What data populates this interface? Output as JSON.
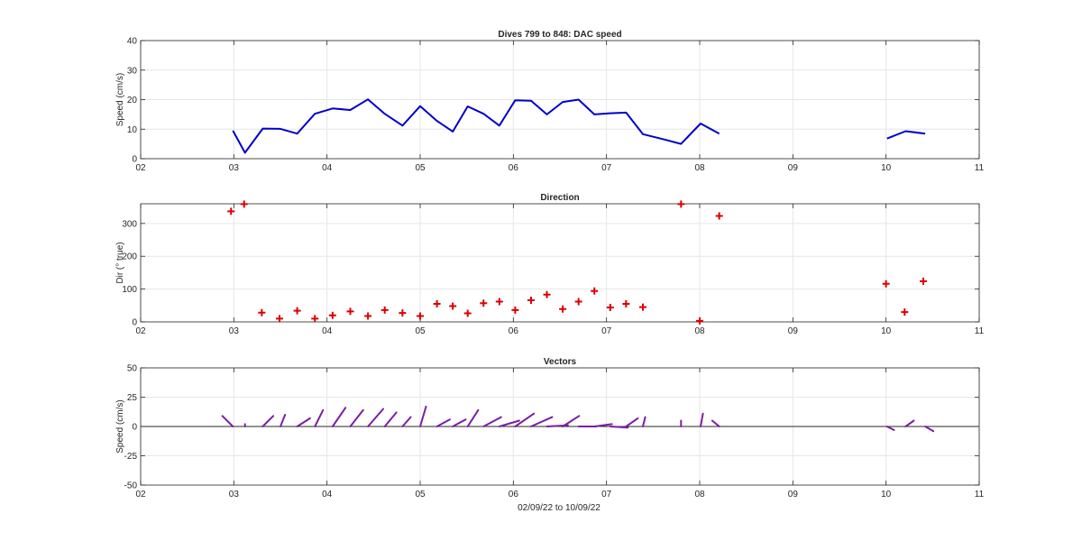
{
  "figure": {
    "xlabel": "02/09/22 to 10/09/22"
  },
  "chart_data": [
    {
      "type": "line",
      "title": "Dives 799 to 848: DAC speed",
      "ylabel": "Speed (cm/s)",
      "xlabel": "",
      "x_ticks": [
        "02",
        "03",
        "04",
        "05",
        "06",
        "07",
        "08",
        "09",
        "10",
        "11"
      ],
      "y_ticks": [
        0,
        10,
        20,
        30,
        40
      ],
      "xlim": [
        2,
        11
      ],
      "ylim": [
        0,
        40
      ],
      "grid": true,
      "color": "#0000cc",
      "series": [
        {
          "segments": [
            [
              [
                2.99,
                9.5
              ],
              [
                3.12,
                2.0
              ],
              [
                3.31,
                10.2
              ],
              [
                3.5,
                10.1
              ],
              [
                3.68,
                8.5
              ],
              [
                3.87,
                15.2
              ],
              [
                4.06,
                17.0
              ],
              [
                4.25,
                16.5
              ],
              [
                4.44,
                20.1
              ],
              [
                4.62,
                15.2
              ],
              [
                4.81,
                11.2
              ],
              [
                5.0,
                17.8
              ],
              [
                5.18,
                12.8
              ],
              [
                5.35,
                9.2
              ],
              [
                5.51,
                17.7
              ],
              [
                5.68,
                15.2
              ],
              [
                5.85,
                11.2
              ],
              [
                6.02,
                19.8
              ],
              [
                6.19,
                19.6
              ],
              [
                6.36,
                15.0
              ],
              [
                6.53,
                19.2
              ],
              [
                6.7,
                20.0
              ],
              [
                6.87,
                15.0
              ],
              [
                7.04,
                15.4
              ],
              [
                7.21,
                15.6
              ],
              [
                7.39,
                8.3
              ],
              [
                7.62,
                6.5
              ],
              [
                7.8,
                5.0
              ],
              [
                8.01,
                11.9
              ],
              [
                8.21,
                8.5
              ]
            ],
            [
              [
                10.01,
                6.8
              ],
              [
                10.21,
                9.3
              ],
              [
                10.42,
                8.5
              ]
            ]
          ]
        }
      ]
    },
    {
      "type": "scatter",
      "title": "Direction",
      "ylabel": "Dir (° true)",
      "xlabel": "",
      "x_ticks": [
        "02",
        "03",
        "04",
        "05",
        "06",
        "07",
        "08",
        "09",
        "10",
        "11"
      ],
      "y_ticks": [
        0,
        100,
        200,
        300
      ],
      "xlim": [
        2,
        11
      ],
      "ylim": [
        0,
        360
      ],
      "grid": true,
      "marker": "+",
      "color": "#dd0000",
      "points": [
        [
          2.97,
          337
        ],
        [
          3.11,
          359
        ],
        [
          3.3,
          28
        ],
        [
          3.49,
          10
        ],
        [
          3.68,
          34
        ],
        [
          3.87,
          10
        ],
        [
          4.06,
          20
        ],
        [
          4.25,
          32
        ],
        [
          4.44,
          18
        ],
        [
          4.62,
          36
        ],
        [
          4.81,
          27
        ],
        [
          5.0,
          18
        ],
        [
          5.18,
          55
        ],
        [
          5.35,
          48
        ],
        [
          5.51,
          26
        ],
        [
          5.68,
          57
        ],
        [
          5.85,
          62
        ],
        [
          6.02,
          36
        ],
        [
          6.19,
          66
        ],
        [
          6.36,
          83
        ],
        [
          6.53,
          39
        ],
        [
          6.7,
          62
        ],
        [
          6.87,
          94
        ],
        [
          7.04,
          44
        ],
        [
          7.21,
          55
        ],
        [
          7.39,
          45
        ],
        [
          7.8,
          359
        ],
        [
          8.0,
          3
        ],
        [
          8.21,
          323
        ],
        [
          10.0,
          116
        ],
        [
          10.2,
          30
        ],
        [
          10.4,
          124
        ]
      ]
    },
    {
      "type": "vector",
      "title": "Vectors",
      "ylabel": "Speed (cm/s)",
      "xlabel": "",
      "x_ticks": [
        "02",
        "03",
        "04",
        "05",
        "06",
        "07",
        "08",
        "09",
        "10",
        "11"
      ],
      "y_ticks": [
        "50",
        "25",
        "0",
        "-25",
        "-50"
      ],
      "xlim": [
        2,
        11
      ],
      "ylim": [
        -50,
        50
      ],
      "grid": true,
      "color": "#7a1fa2",
      "vectors": [
        [
          2.99,
          -9,
          9
        ],
        [
          3.12,
          0,
          2
        ],
        [
          3.31,
          9,
          9
        ],
        [
          3.5,
          4,
          10
        ],
        [
          3.68,
          11,
          7
        ],
        [
          3.87,
          7,
          14
        ],
        [
          4.06,
          11,
          16
        ],
        [
          4.25,
          11,
          14
        ],
        [
          4.44,
          13,
          15
        ],
        [
          4.62,
          10,
          12
        ],
        [
          4.81,
          7,
          8
        ],
        [
          5.0,
          5,
          17
        ],
        [
          5.18,
          11,
          6
        ],
        [
          5.35,
          11,
          6
        ],
        [
          5.51,
          9,
          14
        ],
        [
          5.68,
          15,
          8
        ],
        [
          5.85,
          17,
          5
        ],
        [
          6.02,
          16,
          11
        ],
        [
          6.19,
          18,
          8
        ],
        [
          6.36,
          18,
          1
        ],
        [
          6.53,
          14,
          9
        ],
        [
          6.7,
          15,
          0
        ],
        [
          6.87,
          15,
          2
        ],
        [
          7.04,
          15,
          -1
        ],
        [
          7.21,
          10,
          7
        ],
        [
          7.39,
          2,
          8
        ],
        [
          7.8,
          0,
          5
        ],
        [
          8.01,
          2,
          11
        ],
        [
          8.21,
          -6,
          5
        ],
        [
          10.01,
          6,
          -3
        ],
        [
          10.21,
          7,
          5
        ],
        [
          10.42,
          7,
          -4
        ]
      ]
    }
  ]
}
